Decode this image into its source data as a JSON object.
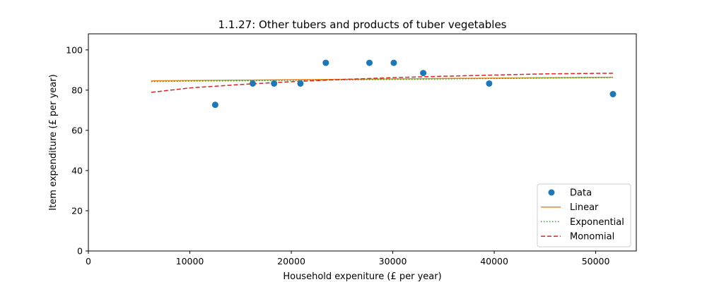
{
  "chart_data": {
    "type": "scatter",
    "title": "1.1.27: Other tubers and products of tuber vegetables",
    "xlabel": "Household expeniture (£ per year)",
    "ylabel": "Item expenditure (£ per year)",
    "xlim": [
      0,
      54000
    ],
    "ylim": [
      0,
      108
    ],
    "xticks": [
      0,
      10000,
      20000,
      30000,
      40000,
      50000
    ],
    "yticks": [
      0,
      20,
      40,
      60,
      80,
      100
    ],
    "grid": false,
    "legend_position": "bottom-right",
    "series": [
      {
        "name": "Data",
        "kind": "points",
        "color": "#1f77b4",
        "x": [
          12500,
          16200,
          18300,
          20900,
          23400,
          27700,
          30100,
          33000,
          39500,
          51700
        ],
        "y": [
          72.7,
          83.3,
          83.3,
          83.3,
          93.6,
          93.6,
          93.6,
          88.5,
          83.3,
          78.0
        ]
      },
      {
        "name": "Linear",
        "kind": "line",
        "style": "solid",
        "color": "#ff7f0e",
        "x": [
          6200,
          51700
        ],
        "y": [
          84.6,
          86.4
        ]
      },
      {
        "name": "Exponential",
        "kind": "line",
        "style": "dotted",
        "color": "#2ca02c",
        "x": [
          6200,
          51700
        ],
        "y": [
          84.3,
          86.3
        ]
      },
      {
        "name": "Monomial",
        "kind": "line",
        "style": "dashed",
        "color": "#d62728",
        "x": [
          6200,
          10000,
          15000,
          20000,
          25000,
          30000,
          35000,
          40000,
          45000,
          51700
        ],
        "y": [
          78.9,
          81.1,
          82.8,
          84.2,
          85.3,
          86.2,
          86.9,
          87.5,
          88.1,
          88.4
        ]
      }
    ]
  }
}
